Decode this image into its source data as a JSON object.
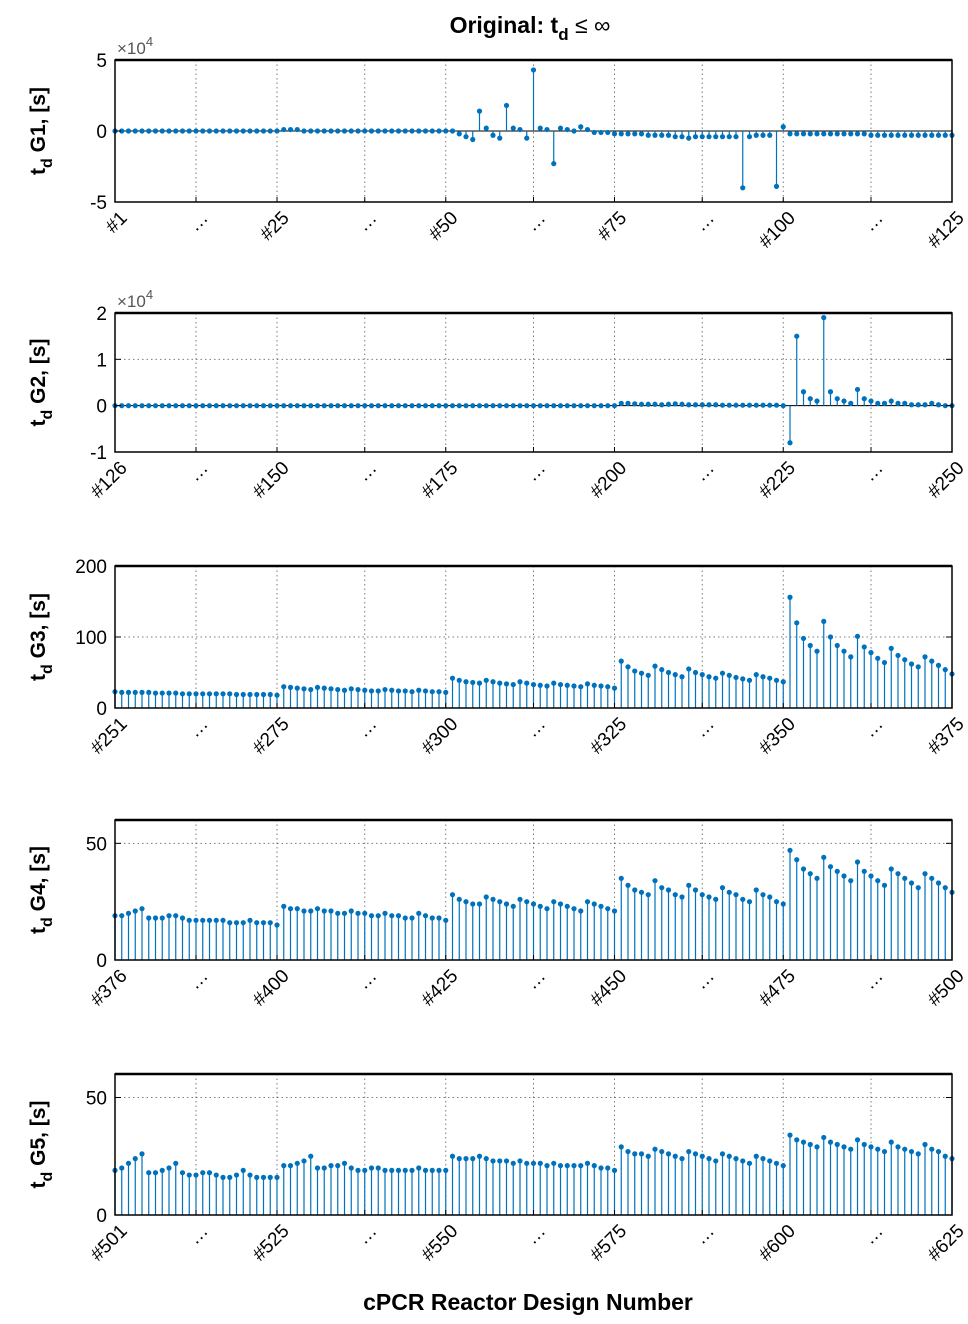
{
  "figure": {
    "title_main": "Original: t",
    "title_sub": "d",
    "title_rest": " ≤ ∞",
    "xlabel": "cPCR Reactor Design Number"
  },
  "colors": {
    "stem": "#0072BD",
    "axis": "#000000",
    "grid": "#262626"
  },
  "chart_data": [
    {
      "type": "stem",
      "ylabel_main": "t",
      "ylabel_sub": "d",
      "ylabel_rest": " G1, [s]",
      "exponent": "×10",
      "exponent_power": "4",
      "ylim": [
        -5,
        5
      ],
      "yticks": [
        -5,
        0,
        5
      ],
      "ytick_labels": [
        "-5",
        "0",
        "5"
      ],
      "x_start": 1,
      "x_end": 125,
      "xtick_positions": [
        1,
        13,
        25,
        38,
        50,
        63,
        75,
        88,
        100,
        113,
        125
      ],
      "xtick_labels": [
        "#1",
        "…",
        "#25",
        "…",
        "#50",
        "…",
        "#75",
        "…",
        "#100",
        "…",
        "#125"
      ],
      "values": [
        0,
        0,
        0,
        0,
        0,
        0,
        0,
        0,
        0,
        0,
        0,
        0,
        0,
        0,
        0,
        0,
        0,
        0,
        0,
        0,
        0,
        0,
        0,
        0,
        0,
        0.1,
        0.1,
        0.1,
        0,
        0,
        0,
        0,
        0,
        0,
        0,
        0,
        0,
        0,
        0,
        0,
        0,
        0,
        0,
        0,
        0,
        0,
        0,
        0,
        0,
        0,
        0,
        -0.2,
        -0.4,
        -0.6,
        1.4,
        0.2,
        -0.3,
        -0.5,
        1.8,
        0.2,
        0.1,
        -0.5,
        4.3,
        0.2,
        0.1,
        -2.3,
        0.2,
        0.1,
        0,
        0.3,
        0.1,
        -0.1,
        -0.1,
        -0.1,
        -0.2,
        -0.2,
        -0.2,
        -0.2,
        -0.2,
        -0.3,
        -0.3,
        -0.3,
        -0.3,
        -0.4,
        -0.4,
        -0.5,
        -0.4,
        -0.4,
        -0.4,
        -0.4,
        -0.4,
        -0.4,
        -0.4,
        -4,
        -0.4,
        -0.3,
        -0.3,
        -0.3,
        -3.9,
        0.3,
        -0.2,
        -0.2,
        -0.2,
        -0.2,
        -0.2,
        -0.2,
        -0.2,
        -0.2,
        -0.2,
        -0.2,
        -0.2,
        -0.2,
        -0.3,
        -0.3,
        -0.3,
        -0.3,
        -0.3,
        -0.3,
        -0.3,
        -0.3,
        -0.3,
        -0.3,
        -0.3,
        -0.3,
        -0.3
      ]
    },
    {
      "type": "stem",
      "ylabel_main": "t",
      "ylabel_sub": "d",
      "ylabel_rest": " G2, [s]",
      "exponent": "×10",
      "exponent_power": "4",
      "ylim": [
        -1,
        2
      ],
      "yticks": [
        -1,
        0,
        1,
        2
      ],
      "ytick_labels": [
        "-1",
        "0",
        "1",
        "2"
      ],
      "x_start": 126,
      "x_end": 250,
      "xtick_positions": [
        126,
        138,
        150,
        163,
        175,
        188,
        200,
        213,
        225,
        238,
        250
      ],
      "xtick_labels": [
        "#126",
        "…",
        "#150",
        "…",
        "#175",
        "…",
        "#200",
        "…",
        "#225",
        "…",
        "#250"
      ],
      "values": [
        0,
        0,
        0,
        0,
        0,
        0,
        0,
        0,
        0,
        0,
        0,
        0,
        0,
        0,
        0,
        0,
        0,
        0,
        0,
        0,
        0,
        0,
        0,
        0,
        0,
        0,
        0,
        0,
        0,
        0,
        0,
        0,
        0,
        0,
        0,
        0,
        0,
        0,
        0,
        0,
        0,
        0,
        0,
        0,
        0,
        0,
        0,
        0,
        0,
        0,
        0,
        0,
        0,
        0,
        0,
        0,
        0,
        0,
        0,
        0,
        0,
        0,
        0,
        0,
        0,
        0,
        0,
        0,
        0,
        0,
        0,
        0,
        0,
        0,
        0,
        0.05,
        0.05,
        0.04,
        0.03,
        0.03,
        0.03,
        0.02,
        0.03,
        0.04,
        0.03,
        0.02,
        0.02,
        0.02,
        0.02,
        0.02,
        0.01,
        0.01,
        0.01,
        0.01,
        0.01,
        0.01,
        0.01,
        0.01,
        0.01,
        0,
        -0.8,
        1.5,
        0.3,
        0.15,
        0.1,
        1.9,
        0.3,
        0.15,
        0.1,
        0.05,
        0.35,
        0.15,
        0.1,
        0.05,
        0.05,
        0.1,
        0.05,
        0.05,
        0.02,
        0.02,
        0.02,
        0.05,
        0.02,
        0,
        0
      ]
    },
    {
      "type": "stem",
      "ylabel_main": "t",
      "ylabel_sub": "d",
      "ylabel_rest": " G3, [s]",
      "exponent": "",
      "exponent_power": "",
      "ylim": [
        0,
        200
      ],
      "yticks": [
        0,
        100,
        200
      ],
      "ytick_labels": [
        "0",
        "100",
        "200"
      ],
      "x_start": 251,
      "x_end": 375,
      "xtick_positions": [
        251,
        263,
        275,
        288,
        300,
        313,
        325,
        338,
        350,
        363,
        375
      ],
      "xtick_labels": [
        "#251",
        "…",
        "#275",
        "…",
        "#300",
        "…",
        "#325",
        "…",
        "#350",
        "…",
        "#375"
      ],
      "values": [
        23,
        22,
        22,
        22,
        22,
        22,
        21,
        21,
        21,
        21,
        20,
        20,
        20,
        20,
        20,
        20,
        20,
        20,
        19,
        19,
        19,
        19,
        19,
        19,
        18,
        30,
        29,
        28,
        27,
        26,
        29,
        28,
        27,
        26,
        25,
        27,
        26,
        25,
        24,
        24,
        26,
        25,
        24,
        24,
        23,
        25,
        24,
        23,
        23,
        22,
        42,
        39,
        37,
        36,
        35,
        39,
        37,
        35,
        34,
        33,
        37,
        35,
        33,
        32,
        31,
        35,
        33,
        32,
        31,
        30,
        34,
        32,
        31,
        30,
        28,
        66,
        58,
        52,
        49,
        46,
        59,
        54,
        50,
        47,
        44,
        55,
        50,
        47,
        44,
        42,
        49,
        46,
        43,
        41,
        39,
        47,
        44,
        42,
        39,
        37,
        156,
        120,
        98,
        88,
        80,
        122,
        100,
        88,
        80,
        72,
        101,
        86,
        78,
        70,
        64,
        84,
        74,
        68,
        62,
        58,
        72,
        66,
        60,
        54,
        48
      ]
    },
    {
      "type": "stem",
      "ylabel_main": "t",
      "ylabel_sub": "d",
      "ylabel_rest": " G4, [s]",
      "exponent": "",
      "exponent_power": "",
      "ylim": [
        0,
        60
      ],
      "yticks": [
        0,
        50
      ],
      "ytick_labels": [
        "0",
        "50"
      ],
      "x_start": 376,
      "x_end": 500,
      "xtick_positions": [
        376,
        388,
        400,
        413,
        425,
        438,
        450,
        463,
        475,
        488,
        500
      ],
      "xtick_labels": [
        "#376",
        "…",
        "#400",
        "…",
        "#425",
        "…",
        "#450",
        "…",
        "#475",
        "…",
        "#500"
      ],
      "values": [
        19,
        19,
        20,
        21,
        22,
        18,
        18,
        18,
        19,
        19,
        18,
        17,
        17,
        17,
        17,
        17,
        17,
        16,
        16,
        16,
        17,
        16,
        16,
        16,
        15,
        23,
        22,
        22,
        21,
        21,
        22,
        21,
        21,
        20,
        20,
        21,
        20,
        20,
        19,
        19,
        20,
        19,
        19,
        18,
        18,
        20,
        19,
        18,
        18,
        17,
        28,
        26,
        25,
        24,
        24,
        27,
        26,
        25,
        24,
        23,
        26,
        25,
        24,
        23,
        22,
        25,
        24,
        23,
        22,
        21,
        25,
        24,
        23,
        22,
        21,
        35,
        32,
        30,
        29,
        28,
        34,
        31,
        30,
        28,
        27,
        32,
        30,
        28,
        27,
        26,
        31,
        29,
        28,
        26,
        25,
        30,
        28,
        27,
        25,
        24,
        47,
        43,
        39,
        37,
        35,
        44,
        40,
        38,
        36,
        34,
        42,
        38,
        36,
        34,
        32,
        39,
        37,
        35,
        33,
        31,
        37,
        35,
        33,
        31,
        29
      ]
    },
    {
      "type": "stem",
      "ylabel_main": "t",
      "ylabel_sub": "d",
      "ylabel_rest": " G5, [s]",
      "exponent": "",
      "exponent_power": "",
      "ylim": [
        0,
        60
      ],
      "yticks": [
        0,
        50
      ],
      "ytick_labels": [
        "0",
        "50"
      ],
      "x_start": 501,
      "x_end": 625,
      "xtick_positions": [
        501,
        513,
        525,
        538,
        550,
        563,
        575,
        588,
        600,
        613,
        625
      ],
      "xtick_labels": [
        "#501",
        "…",
        "#525",
        "…",
        "#550",
        "…",
        "#575",
        "…",
        "#600",
        "…",
        "#625"
      ],
      "values": [
        19,
        20,
        22,
        24,
        26,
        18,
        18,
        19,
        20,
        22,
        18,
        17,
        17,
        18,
        18,
        17,
        16,
        16,
        17,
        19,
        17,
        16,
        16,
        16,
        16,
        21,
        21,
        22,
        23,
        25,
        20,
        20,
        21,
        21,
        22,
        20,
        19,
        19,
        20,
        20,
        19,
        19,
        19,
        19,
        19,
        20,
        19,
        19,
        19,
        19,
        25,
        24,
        24,
        24,
        25,
        24,
        23,
        23,
        23,
        22,
        23,
        22,
        22,
        22,
        21,
        22,
        21,
        21,
        21,
        21,
        22,
        21,
        20,
        20,
        19,
        29,
        27,
        26,
        26,
        25,
        28,
        27,
        26,
        25,
        24,
        27,
        26,
        25,
        24,
        23,
        26,
        25,
        24,
        23,
        22,
        25,
        24,
        23,
        22,
        21,
        34,
        32,
        31,
        30,
        29,
        33,
        31,
        30,
        29,
        28,
        32,
        30,
        29,
        28,
        27,
        31,
        29,
        28,
        27,
        26,
        30,
        28,
        27,
        25,
        24
      ]
    }
  ]
}
